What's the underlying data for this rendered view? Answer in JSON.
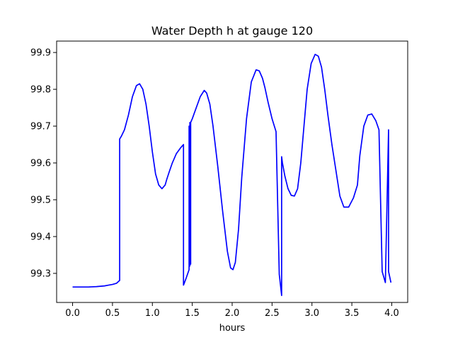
{
  "chart_data": {
    "type": "line",
    "title": "Water Depth h at gauge 120",
    "xlabel": "hours",
    "ylabel": "",
    "xlim": [
      -0.2,
      4.2
    ],
    "ylim": [
      99.221,
      99.931
    ],
    "xticks": [
      0.0,
      0.5,
      1.0,
      1.5,
      2.0,
      2.5,
      3.0,
      3.5,
      4.0
    ],
    "xtick_labels": [
      "0.0",
      "0.5",
      "1.0",
      "1.5",
      "2.0",
      "2.5",
      "3.0",
      "3.5",
      "4.0"
    ],
    "yticks": [
      99.3,
      99.4,
      99.5,
      99.6,
      99.7,
      99.8,
      99.9
    ],
    "ytick_labels": [
      "99.3",
      "99.4",
      "99.5",
      "99.6",
      "99.7",
      "99.8",
      "99.9"
    ],
    "grid": false,
    "series": [
      {
        "color": "#0000ff",
        "x": [
          0.0,
          0.1,
          0.2,
          0.3,
          0.35,
          0.4,
          0.45,
          0.5,
          0.55,
          0.59,
          0.59,
          0.61,
          0.65,
          0.7,
          0.75,
          0.8,
          0.84,
          0.88,
          0.92,
          0.96,
          1.0,
          1.04,
          1.08,
          1.12,
          1.16,
          1.18,
          1.21,
          1.25,
          1.3,
          1.35,
          1.39,
          1.39,
          1.42,
          1.46,
          1.46,
          1.47,
          1.47,
          1.48,
          1.48,
          1.5,
          1.55,
          1.6,
          1.65,
          1.68,
          1.72,
          1.76,
          1.82,
          1.88,
          1.94,
          1.98,
          2.01,
          2.04,
          2.08,
          2.12,
          2.18,
          2.24,
          2.3,
          2.34,
          2.38,
          2.41,
          2.45,
          2.5,
          2.55,
          2.59,
          2.59,
          2.62,
          2.62,
          2.63,
          2.66,
          2.7,
          2.74,
          2.78,
          2.82,
          2.86,
          2.9,
          2.94,
          2.99,
          3.04,
          3.08,
          3.12,
          3.16,
          3.2,
          3.25,
          3.3,
          3.35,
          3.4,
          3.46,
          3.52,
          3.57,
          3.6,
          3.65,
          3.7,
          3.75,
          3.8,
          3.84,
          3.88,
          3.92,
          3.96,
          3.96,
          3.99
        ],
        "y": [
          99.263,
          99.263,
          99.263,
          99.264,
          99.265,
          99.266,
          99.268,
          99.27,
          99.273,
          99.281,
          99.665,
          99.672,
          99.69,
          99.73,
          99.78,
          99.81,
          99.815,
          99.8,
          99.76,
          99.7,
          99.63,
          99.57,
          99.54,
          99.53,
          99.54,
          99.555,
          99.575,
          99.6,
          99.625,
          99.64,
          99.65,
          99.268,
          99.285,
          99.31,
          99.7,
          99.32,
          99.71,
          99.325,
          99.71,
          99.72,
          99.75,
          99.78,
          99.797,
          99.79,
          99.76,
          99.7,
          99.59,
          99.47,
          99.36,
          99.315,
          99.31,
          99.33,
          99.42,
          99.56,
          99.72,
          99.82,
          99.853,
          99.85,
          99.83,
          99.805,
          99.765,
          99.72,
          99.685,
          99.3,
          99.298,
          99.24,
          99.617,
          99.6,
          99.565,
          99.53,
          99.512,
          99.51,
          99.53,
          99.6,
          99.7,
          99.8,
          99.87,
          99.895,
          99.89,
          99.86,
          99.8,
          99.73,
          99.65,
          99.58,
          99.51,
          99.48,
          99.48,
          99.505,
          99.54,
          99.62,
          99.7,
          99.73,
          99.733,
          99.715,
          99.69,
          99.305,
          99.275,
          99.69,
          99.305,
          99.275
        ]
      }
    ]
  }
}
